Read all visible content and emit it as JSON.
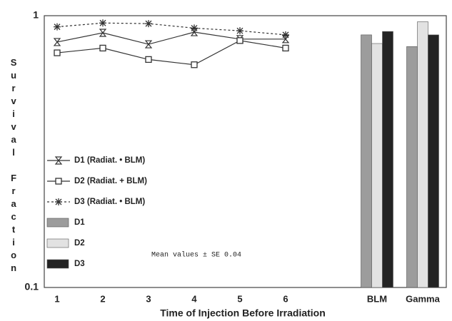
{
  "chart_data": {
    "type": "combo",
    "y_label": "Survival Fraction",
    "x_label": "Time of Injection Before Irradiation",
    "annotation": "Mean values ± SE  0.04",
    "categories": [
      "1",
      "2",
      "3",
      "4",
      "5",
      "6",
      null,
      "BLM",
      "Gamma"
    ],
    "ylim": [
      0.1,
      1
    ],
    "yticks": [
      0.1,
      1
    ],
    "log_y": true,
    "series": [
      {
        "name": "D1 (Radiat. • BLM)",
        "type": "line",
        "marker": "hourglass",
        "line_style": "solid",
        "color": "#333333",
        "values": [
          0.8,
          0.865,
          0.785,
          0.87,
          0.82,
          0.82,
          null,
          null,
          null
        ]
      },
      {
        "name": "D2 (Radiat. + BLM)",
        "type": "line",
        "marker": "square",
        "line_style": "solid",
        "color": "#333333",
        "values": [
          0.73,
          0.76,
          0.69,
          0.66,
          0.81,
          0.76,
          null,
          null,
          null
        ]
      },
      {
        "name": "D3 (Radiat. • BLM)",
        "type": "line",
        "marker": "star",
        "line_style": "dashed",
        "color": "#333333",
        "values": [
          0.91,
          0.94,
          0.935,
          0.9,
          0.88,
          0.85,
          null,
          null,
          null
        ]
      },
      {
        "name": "D1",
        "type": "bar",
        "color": "#9c9c9c",
        "values": [
          null,
          null,
          null,
          null,
          null,
          null,
          null,
          0.85,
          0.77
        ]
      },
      {
        "name": "D2",
        "type": "bar",
        "color": "#e2e2e2",
        "values": [
          null,
          null,
          null,
          null,
          null,
          null,
          null,
          0.79,
          0.95
        ]
      },
      {
        "name": "D3",
        "type": "bar",
        "color": "#232323",
        "values": [
          null,
          null,
          null,
          null,
          null,
          null,
          null,
          0.875,
          0.85
        ]
      }
    ]
  }
}
